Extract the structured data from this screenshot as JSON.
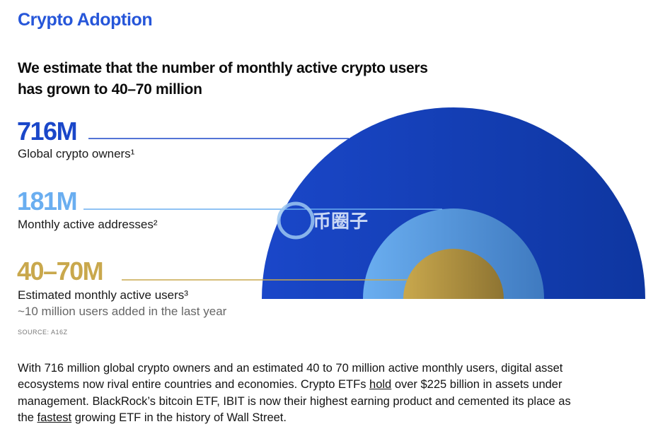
{
  "page": {
    "section_title": "Crypto Adoption",
    "headline_line1": "We estimate that the number of monthly active crypto users",
    "headline_line2": "has grown to 40–70 million",
    "source": "SOURCE: A16Z",
    "watermark": "币圈子"
  },
  "chart_data": {
    "type": "nested-semicircle",
    "title": "",
    "series": [
      {
        "value_label": "716M",
        "value": 716,
        "unit": "M",
        "label": "Global crypto owners¹",
        "sublabel": "",
        "color": "#1a47c9",
        "color_end": "#0e36a0"
      },
      {
        "value_label": "181M",
        "value": 181,
        "unit": "M",
        "label": "Monthly active addresses²",
        "sublabel": "",
        "color": "#6aaef0",
        "color_end": "#3f7ac0"
      },
      {
        "value_label": "40–70M",
        "value_low": 40,
        "value_high": 70,
        "unit": "M",
        "label": "Estimated monthly active users³",
        "sublabel": "~10 million users added in the last year",
        "color": "#c9a84d",
        "color_end": "#8e7432"
      }
    ]
  },
  "body": {
    "p1": "With 716 million global crypto owners and an estimated 40 to 70 million active monthly users, digital asset ecosystems now rival entire countries and economies. Crypto ETFs ",
    "link1": "hold",
    "p2": " over $225 billion in assets under management. BlackRock’s bitcoin ETF, IBIT is now their highest earning product and cemented its place as the ",
    "link2": "fastest",
    "p3": " growing ETF in the history of Wall Street."
  }
}
